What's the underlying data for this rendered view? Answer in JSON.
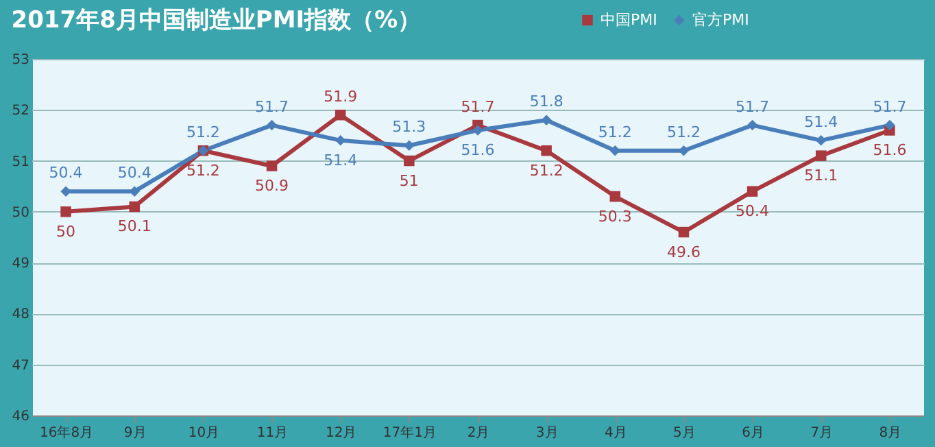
{
  "chart_data": {
    "type": "line",
    "title": "2017年8月中国制造业PMI指数（%）",
    "categories": [
      "16年8月",
      "9月",
      "10月",
      "11月",
      "12月",
      "17年1月",
      "2月",
      "3月",
      "4月",
      "5月",
      "6月",
      "7月",
      "8月"
    ],
    "series": [
      {
        "name": "中国PMI",
        "color": "#a83a3f",
        "marker": "square",
        "values": [
          50,
          50.1,
          51.2,
          50.9,
          51.9,
          51,
          51.7,
          51.2,
          50.3,
          49.6,
          50.4,
          51.1,
          51.6
        ]
      },
      {
        "name": "官方PMI",
        "color": "#4a7ebb",
        "marker": "diamond",
        "values": [
          50.4,
          50.4,
          51.2,
          51.7,
          51.4,
          51.3,
          51.6,
          51.8,
          51.2,
          51.2,
          51.7,
          51.4,
          51.7
        ]
      }
    ],
    "ylim": [
      46,
      53
    ],
    "yticks": [
      46,
      47,
      48,
      49,
      50,
      51,
      52,
      53
    ],
    "grid": "y",
    "legend": "top right",
    "data_labels": true,
    "line_style": "solid"
  }
}
